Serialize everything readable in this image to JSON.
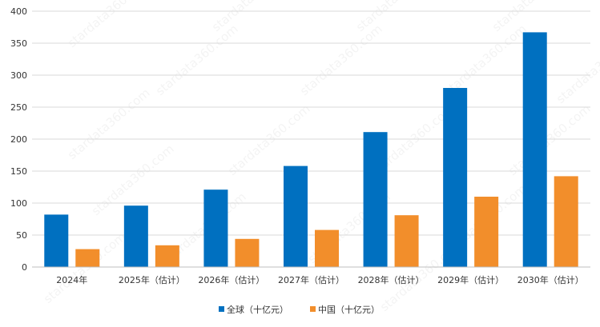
{
  "chart_data": {
    "type": "bar",
    "categories": [
      "2024年",
      "2025年（估计）",
      "2026年（估计）",
      "2027年（估计）",
      "2028年（估计）",
      "2029年（估计）",
      "2030年（估计）"
    ],
    "series": [
      {
        "name": "全球（十亿元）",
        "color": "#0070c0",
        "values": [
          82,
          96,
          121,
          158,
          211,
          280,
          367
        ]
      },
      {
        "name": "中国（十亿元）",
        "color": "#f28e2b",
        "values": [
          28,
          34,
          44,
          58,
          81,
          110,
          142
        ]
      }
    ],
    "ylim": [
      0,
      400
    ],
    "yticks": [
      0,
      50,
      100,
      150,
      200,
      250,
      300,
      350,
      400
    ],
    "grid": true,
    "legend_position": "bottom",
    "xlabel": "",
    "ylabel": "",
    "title": ""
  },
  "watermark": "stardata360.com"
}
